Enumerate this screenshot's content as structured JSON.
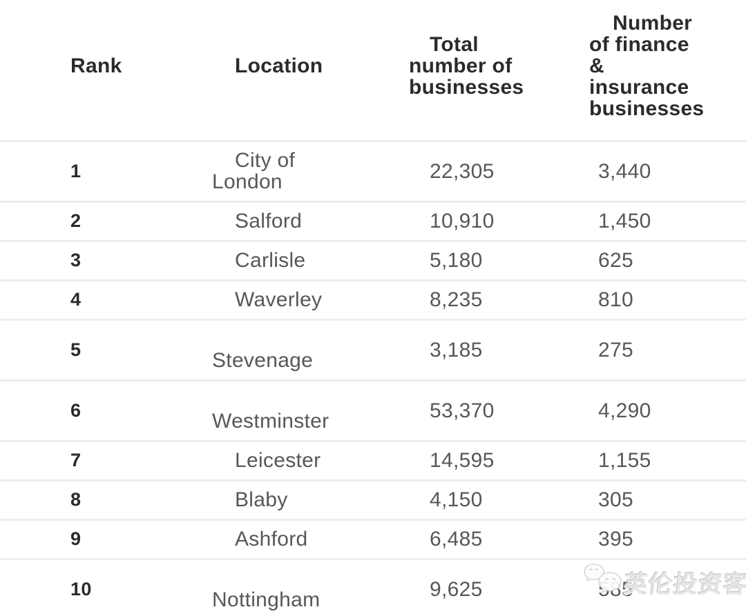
{
  "chart_data": {
    "type": "table",
    "title": "",
    "columns": [
      "Rank",
      "Location",
      "Total number of businesses",
      "Number of finance & insurance businesses"
    ],
    "rows": [
      [
        1,
        "City of London",
        22305,
        3440
      ],
      [
        2,
        "Salford",
        10910,
        1450
      ],
      [
        3,
        "Carlisle",
        5180,
        625
      ],
      [
        4,
        "Waverley",
        8235,
        810
      ],
      [
        5,
        "Stevenage",
        3185,
        275
      ],
      [
        6,
        "Westminster",
        53370,
        4290
      ],
      [
        7,
        "Leicester",
        14595,
        1155
      ],
      [
        8,
        "Blaby",
        4150,
        305
      ],
      [
        9,
        "Ashford",
        6485,
        395
      ],
      [
        10,
        "Nottingham",
        9625,
        585
      ]
    ]
  },
  "table": {
    "header": {
      "rank": "Rank",
      "location": "Location",
      "total": "Total\nnumber of\nbusinesses",
      "finance": "Number\nof finance\n&\ninsurance\nbusinesses"
    },
    "rows": [
      {
        "rank": "1",
        "location": "City of\nLondon",
        "total": "22,305",
        "finance": "3,440"
      },
      {
        "rank": "2",
        "location": "Salford",
        "total": "10,910",
        "finance": "1,450"
      },
      {
        "rank": "3",
        "location": "Carlisle",
        "total": "5,180",
        "finance": "625"
      },
      {
        "rank": "4",
        "location": "Waverley",
        "total": "8,235",
        "finance": "810"
      },
      {
        "rank": "5",
        "location": "\nStevenage",
        "total": "3,185",
        "finance": "275"
      },
      {
        "rank": "6",
        "location": "\nWestminster",
        "total": "53,370",
        "finance": "4,290"
      },
      {
        "rank": "7",
        "location": "Leicester",
        "total": "14,595",
        "finance": "1,155"
      },
      {
        "rank": "8",
        "location": "Blaby",
        "total": "4,150",
        "finance": "305"
      },
      {
        "rank": "9",
        "location": "Ashford",
        "total": "6,485",
        "finance": "395"
      },
      {
        "rank": "10",
        "location": "\nNottingham",
        "total": "9,625",
        "finance": "585"
      }
    ]
  },
  "watermark": {
    "text": "英伦投资客",
    "icon": "wechat-chat-bubbles-icon"
  },
  "colors": {
    "background": "#ffffff",
    "header_text": "#2b2b2d",
    "body_text": "#56575b",
    "row_divider": "#ededed",
    "watermark_gray": "#cccccc"
  }
}
